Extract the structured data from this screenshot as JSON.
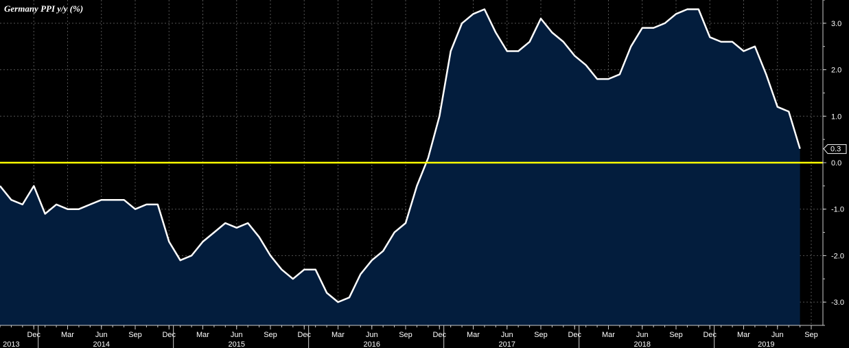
{
  "chart_data": {
    "type": "area",
    "title": "Germany PPI y/y (%)",
    "xlabel": "",
    "ylabel": "",
    "ylim": [
      -3.5,
      3.5
    ],
    "y_ticks": [
      -3.0,
      -2.0,
      -1.0,
      0.0,
      1.0,
      2.0,
      3.0
    ],
    "y_tick_labels": [
      "-3.0",
      "-2.0",
      "-1.0",
      "0.0",
      "1.0",
      "2.0",
      "3.0"
    ],
    "x_start": "2013-09",
    "x_end": "2019-09",
    "x_month_ticks": [
      {
        "label": "Dec",
        "date": "2013-12"
      },
      {
        "label": "Mar",
        "date": "2014-03"
      },
      {
        "label": "Jun",
        "date": "2014-06"
      },
      {
        "label": "Sep",
        "date": "2014-09"
      },
      {
        "label": "Dec",
        "date": "2014-12"
      },
      {
        "label": "Mar",
        "date": "2015-03"
      },
      {
        "label": "Jun",
        "date": "2015-06"
      },
      {
        "label": "Sep",
        "date": "2015-09"
      },
      {
        "label": "Dec",
        "date": "2015-12"
      },
      {
        "label": "Mar",
        "date": "2016-03"
      },
      {
        "label": "Jun",
        "date": "2016-06"
      },
      {
        "label": "Sep",
        "date": "2016-09"
      },
      {
        "label": "Dec",
        "date": "2016-12"
      },
      {
        "label": "Mar",
        "date": "2017-03"
      },
      {
        "label": "Jun",
        "date": "2017-06"
      },
      {
        "label": "Sep",
        "date": "2017-09"
      },
      {
        "label": "Dec",
        "date": "2017-12"
      },
      {
        "label": "Mar",
        "date": "2018-03"
      },
      {
        "label": "Jun",
        "date": "2018-06"
      },
      {
        "label": "Sep",
        "date": "2018-09"
      },
      {
        "label": "Dec",
        "date": "2018-12"
      },
      {
        "label": "Mar",
        "date": "2019-03"
      },
      {
        "label": "Jun",
        "date": "2019-06"
      },
      {
        "label": "Sep",
        "date": "2019-09"
      }
    ],
    "x_year_labels": [
      {
        "label": "2013",
        "date": "2013-10"
      },
      {
        "label": "2014",
        "date": "2014-06"
      },
      {
        "label": "2015",
        "date": "2015-06"
      },
      {
        "label": "2016",
        "date": "2016-06"
      },
      {
        "label": "2017",
        "date": "2017-06"
      },
      {
        "label": "2018",
        "date": "2018-06"
      },
      {
        "label": "2019",
        "date": "2019-05"
      }
    ],
    "reference_line": {
      "y": 0.0,
      "color": "#ffff00"
    },
    "last_value_label": "0.3",
    "grid": true,
    "colors": {
      "line": "#ffffff",
      "fill": "#031d3d",
      "background": "#000000",
      "grid": "#555555",
      "text": "#ffffff"
    },
    "series": [
      {
        "dates": [
          "2013-09",
          "2013-10",
          "2013-11",
          "2013-12",
          "2014-01",
          "2014-02",
          "2014-03",
          "2014-04",
          "2014-05",
          "2014-06",
          "2014-07",
          "2014-08",
          "2014-09",
          "2014-10",
          "2014-11",
          "2014-12",
          "2015-01",
          "2015-02",
          "2015-03",
          "2015-04",
          "2015-05",
          "2015-06",
          "2015-07",
          "2015-08",
          "2015-09",
          "2015-10",
          "2015-11",
          "2015-12",
          "2016-01",
          "2016-02",
          "2016-03",
          "2016-04",
          "2016-05",
          "2016-06",
          "2016-07",
          "2016-08",
          "2016-09",
          "2016-10",
          "2016-11",
          "2016-12",
          "2017-01",
          "2017-02",
          "2017-03",
          "2017-04",
          "2017-05",
          "2017-06",
          "2017-07",
          "2017-08",
          "2017-09",
          "2017-10",
          "2017-11",
          "2017-12",
          "2018-01",
          "2018-02",
          "2018-03",
          "2018-04",
          "2018-05",
          "2018-06",
          "2018-07",
          "2018-08",
          "2018-09",
          "2018-10",
          "2018-11",
          "2018-12",
          "2019-01",
          "2019-02",
          "2019-03",
          "2019-04",
          "2019-05",
          "2019-06",
          "2019-07",
          "2019-08"
        ],
        "values": [
          -0.5,
          -0.8,
          -0.9,
          -0.5,
          -1.1,
          -0.9,
          -1.0,
          -1.0,
          -0.9,
          -0.8,
          -0.8,
          -0.8,
          -1.0,
          -0.9,
          -0.9,
          -1.7,
          -2.1,
          -2.0,
          -1.7,
          -1.5,
          -1.3,
          -1.4,
          -1.3,
          -1.6,
          -2.0,
          -2.3,
          -2.5,
          -2.3,
          -2.3,
          -2.8,
          -3.0,
          -2.9,
          -2.4,
          -2.1,
          -1.9,
          -1.5,
          -1.3,
          -0.5,
          0.1,
          1.0,
          2.4,
          3.0,
          3.2,
          3.3,
          2.8,
          2.4,
          2.4,
          2.6,
          3.1,
          2.8,
          2.6,
          2.3,
          2.1,
          1.8,
          1.8,
          1.9,
          2.5,
          2.9,
          2.9,
          3.0,
          3.2,
          3.3,
          3.3,
          2.7,
          2.6,
          2.6,
          2.4,
          2.5,
          1.9,
          1.2,
          1.1,
          0.3
        ]
      }
    ]
  }
}
